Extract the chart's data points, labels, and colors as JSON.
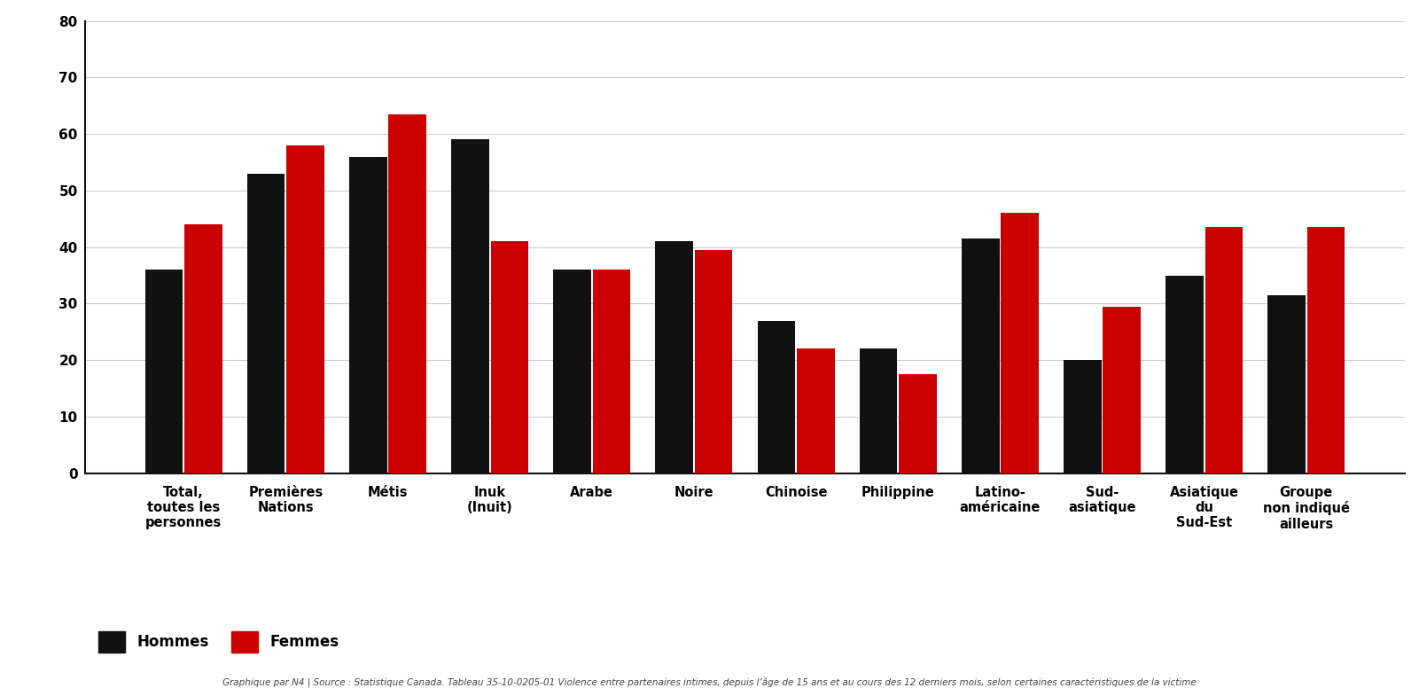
{
  "categories": [
    "Total,\ntoutes les\npersonnes",
    "Premières\nNations",
    "Métis",
    "Inuk\n(Inuit)",
    "Arabe",
    "Noire",
    "Chinoise",
    "Philippine",
    "Latino-\naméricaine",
    "Sud-\nasiatique",
    "Asiatique\ndu\nSud-Est",
    "Groupe\nnon indiqué\nailleurs"
  ],
  "hommes": [
    36,
    53,
    56,
    59,
    36,
    41,
    27,
    22,
    41.5,
    20,
    35,
    31.5
  ],
  "femmes": [
    44,
    58,
    63.5,
    41,
    36,
    39.5,
    22,
    17.5,
    46,
    29.5,
    43.5,
    43.5
  ],
  "color_hommes": "#111111",
  "color_femmes": "#cc0000",
  "legend_hommes": "Hommes",
  "legend_femmes": "Femmes",
  "ylim": [
    0,
    80
  ],
  "yticks": [
    0,
    10,
    20,
    30,
    40,
    50,
    60,
    70,
    80
  ],
  "background_color": "#ffffff",
  "footer_text": "Graphique par N4 | Source : Statistique Canada. Tableau 35-10-0205-01 Violence entre partenaires intimes, depuis l’âge de 15 ans et au cours des 12 derniers mois, selon certaines caractéristiques de la victime"
}
